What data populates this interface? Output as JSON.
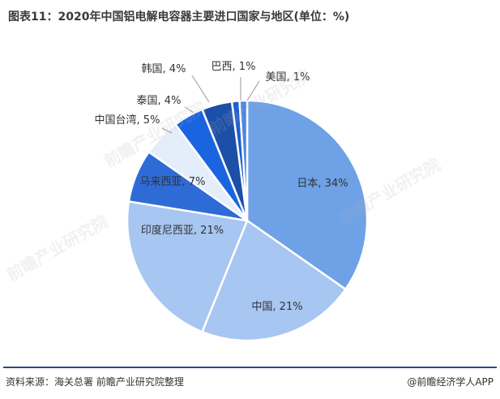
{
  "title": "图表11：2020年中国铝电解电容器主要进口国家与地区(单位：%)",
  "chart_data": {
    "type": "pie",
    "start_angle_deg": 0,
    "direction": "clockwise",
    "slices": [
      {
        "label": "日本",
        "value": 34,
        "display": "日本, 34%",
        "color": "#6ea1e6"
      },
      {
        "label": "中国",
        "value": 21,
        "display": "中国, 21%",
        "color": "#a7c6f1"
      },
      {
        "label": "印度尼西亚",
        "value": 21,
        "display": "印度尼西亚, 21%",
        "color": "#a7c6f1"
      },
      {
        "label": "马来西亚",
        "value": 7,
        "display": "马来西亚, 7%",
        "color": "#2f6bd6"
      },
      {
        "label": "中国台湾",
        "value": 5,
        "display": "中国台湾, 5%",
        "color": "#e4eefb"
      },
      {
        "label": "泰国",
        "value": 4,
        "display": "泰国, 4%",
        "color": "#1b64e0"
      },
      {
        "label": "韩国",
        "value": 4,
        "display": "韩国, 4%",
        "color": "#1b4fa8"
      },
      {
        "label": "巴西",
        "value": 1,
        "display": "巴西, 1%",
        "color": "#1e5fd0"
      },
      {
        "label": "美国",
        "value": 1,
        "display": "美国, 1%",
        "color": "#4a86e8"
      }
    ]
  },
  "footer": {
    "source": "资料来源：海关总署 前瞻产业研究院整理",
    "brand": "@前瞻经济学人APP"
  },
  "watermark_text": "前瞻产业研究院"
}
